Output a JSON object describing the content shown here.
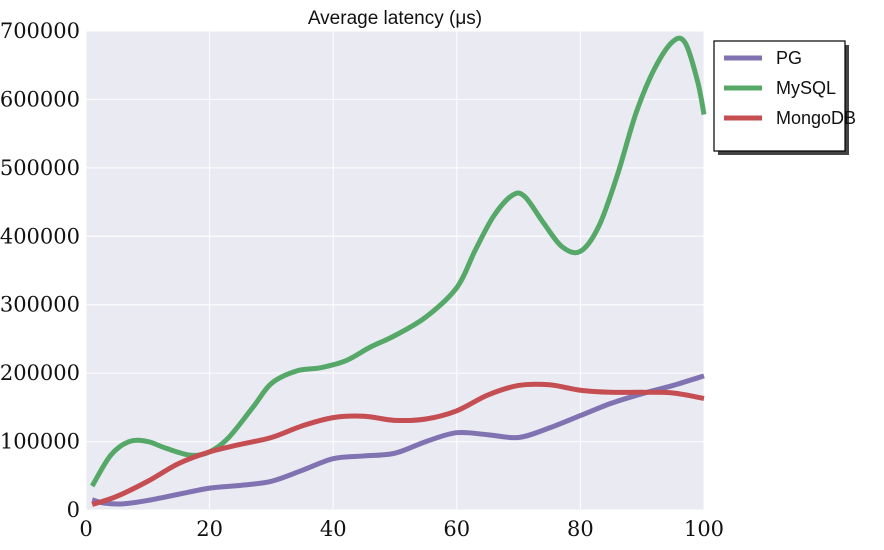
{
  "chart_data": {
    "type": "line",
    "title": "Average latency (μs)",
    "xlabel": "",
    "ylabel": "",
    "xlim": [
      0,
      100
    ],
    "ylim": [
      0,
      700000
    ],
    "x_ticks": [
      0,
      20,
      40,
      60,
      80,
      100
    ],
    "y_ticks": [
      0,
      100000,
      200000,
      300000,
      400000,
      500000,
      600000,
      700000
    ],
    "grid": true,
    "legend_position": "outside-top-right",
    "series": [
      {
        "name": "PG",
        "color": "#8172b2",
        "points": [
          [
            1,
            15000
          ],
          [
            3,
            10000
          ],
          [
            6,
            9000
          ],
          [
            10,
            14000
          ],
          [
            15,
            23000
          ],
          [
            20,
            32000
          ],
          [
            25,
            36000
          ],
          [
            30,
            42000
          ],
          [
            35,
            58000
          ],
          [
            40,
            75000
          ],
          [
            45,
            79000
          ],
          [
            50,
            83000
          ],
          [
            55,
            100000
          ],
          [
            60,
            113000
          ],
          [
            65,
            110000
          ],
          [
            70,
            106000
          ],
          [
            75,
            120000
          ],
          [
            80,
            138000
          ],
          [
            85,
            156000
          ],
          [
            90,
            170000
          ],
          [
            95,
            182000
          ],
          [
            100,
            196000
          ]
        ]
      },
      {
        "name": "MySQL",
        "color": "#55a868",
        "points": [
          [
            1,
            35000
          ],
          [
            4,
            80000
          ],
          [
            7,
            100000
          ],
          [
            10,
            100000
          ],
          [
            13,
            90000
          ],
          [
            17,
            80000
          ],
          [
            20,
            85000
          ],
          [
            23,
            105000
          ],
          [
            27,
            150000
          ],
          [
            30,
            185000
          ],
          [
            34,
            203000
          ],
          [
            38,
            208000
          ],
          [
            42,
            218000
          ],
          [
            46,
            238000
          ],
          [
            50,
            255000
          ],
          [
            55,
            282000
          ],
          [
            60,
            325000
          ],
          [
            63,
            380000
          ],
          [
            66,
            430000
          ],
          [
            69,
            460000
          ],
          [
            71,
            458000
          ],
          [
            74,
            420000
          ],
          [
            77,
            385000
          ],
          [
            80,
            378000
          ],
          [
            83,
            415000
          ],
          [
            86,
            490000
          ],
          [
            89,
            580000
          ],
          [
            92,
            645000
          ],
          [
            95,
            685000
          ],
          [
            97,
            682000
          ],
          [
            99,
            625000
          ],
          [
            100,
            578000
          ]
        ]
      },
      {
        "name": "MongoDB",
        "color": "#c44e52",
        "points": [
          [
            1,
            8000
          ],
          [
            5,
            20000
          ],
          [
            10,
            42000
          ],
          [
            15,
            68000
          ],
          [
            20,
            85000
          ],
          [
            25,
            96000
          ],
          [
            30,
            106000
          ],
          [
            35,
            123000
          ],
          [
            40,
            135000
          ],
          [
            45,
            137000
          ],
          [
            50,
            131000
          ],
          [
            55,
            133000
          ],
          [
            60,
            145000
          ],
          [
            65,
            168000
          ],
          [
            70,
            182000
          ],
          [
            75,
            183000
          ],
          [
            80,
            175000
          ],
          [
            85,
            172000
          ],
          [
            90,
            172000
          ],
          [
            95,
            171000
          ],
          [
            100,
            163000
          ]
        ]
      }
    ]
  }
}
